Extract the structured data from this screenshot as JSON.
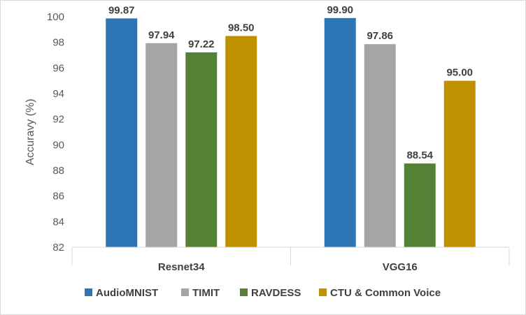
{
  "chart_data": {
    "type": "bar",
    "title": "",
    "xlabel": "",
    "ylabel": "Accuravy (%)",
    "categories": [
      "Resnet34",
      "VGG16"
    ],
    "series": [
      {
        "name": "AudioMNIST",
        "values": [
          99.87,
          99.9
        ],
        "labels": [
          "99.87",
          "99.90"
        ],
        "color": "#2e75b6"
      },
      {
        "name": "TIMIT",
        "values": [
          97.94,
          97.86
        ],
        "labels": [
          "97.94",
          "97.86"
        ],
        "color": "#a5a5a5"
      },
      {
        "name": "RAVDESS",
        "values": [
          97.22,
          88.54
        ],
        "labels": [
          "97.22",
          "88.54"
        ],
        "color": "#548235"
      },
      {
        "name": "CTU & Common Voice",
        "values": [
          98.5,
          95.0
        ],
        "labels": [
          "98.50",
          "95.00"
        ],
        "color": "#bf9000"
      }
    ],
    "ylim": [
      82,
      100
    ],
    "yticks": [
      "82",
      "84",
      "86",
      "88",
      "90",
      "92",
      "94",
      "96",
      "98",
      "100"
    ],
    "grid": false,
    "legend_position": "bottom"
  }
}
